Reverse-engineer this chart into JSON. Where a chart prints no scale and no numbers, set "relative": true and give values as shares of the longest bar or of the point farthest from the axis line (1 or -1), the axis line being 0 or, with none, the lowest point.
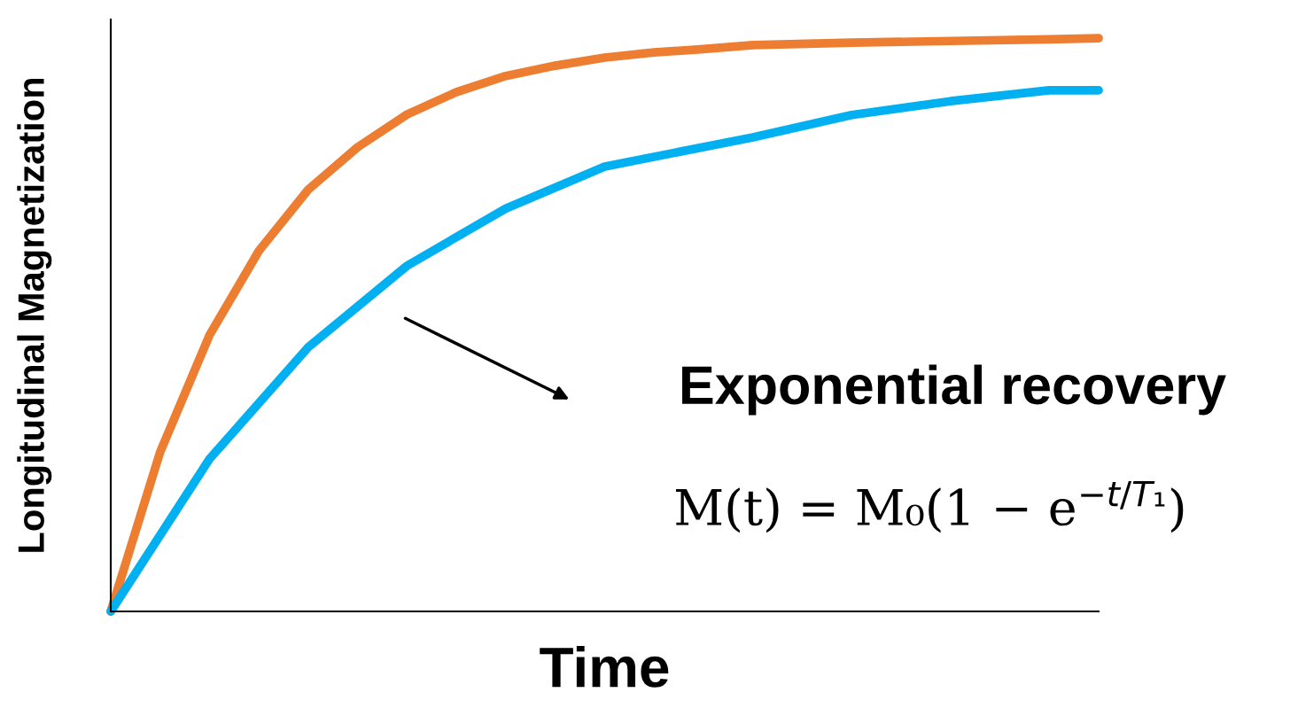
{
  "chart_data": {
    "type": "line",
    "relative": true,
    "xlabel": "Time",
    "ylabel": "Longitudinal Magnetization",
    "categories": [
      null,
      null,
      null,
      null,
      null,
      null,
      null,
      null,
      null,
      null,
      null,
      null,
      null,
      null,
      null,
      null,
      null,
      null,
      null,
      null,
      null
    ],
    "series": [
      {
        "color": "#ed7d31",
        "values": [
          0,
          0.278,
          0.482,
          0.629,
          0.736,
          0.81,
          0.867,
          0.906,
          0.934,
          0.952,
          0.966,
          0.975,
          0.981,
          0.988,
          null,
          0.992,
          null,
          0.995,
          null,
          0.998,
          1
        ]
      },
      {
        "color": "#00b0f0",
        "values": [
          0,
          null,
          0.266,
          null,
          0.461,
          null,
          0.603,
          null,
          0.703,
          null,
          0.776,
          null,
          null,
          0.827,
          null,
          0.866,
          null,
          0.89,
          null,
          0.909,
          0.909
        ]
      }
    ],
    "annotations": [
      "Exponential recovery",
      "M(t) = M₀(1 − e$^{−t/T₁}$)"
    ],
    "grid": false,
    "legend": false,
    "marker": "none",
    "line_style": "solid",
    "tick_labels": false
  }
}
